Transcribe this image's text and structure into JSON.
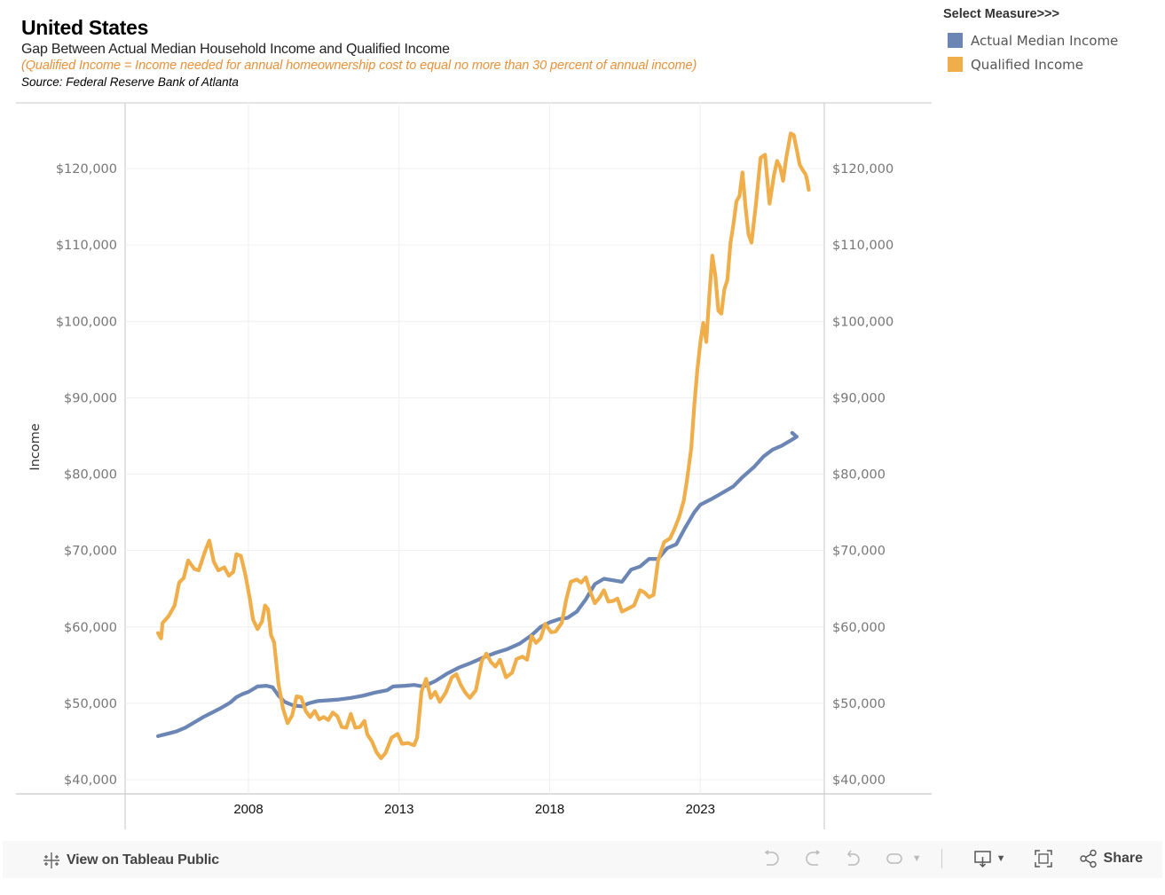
{
  "header": {
    "title": "United States",
    "subtitle": "Gap Between Actual Median Household Income and Qualified Income",
    "note": "(Qualified Income = Income needed for annual homeownership cost to equal no more than 30 percent of annual income)",
    "source": "Source: Federal Reserve Bank of Atlanta"
  },
  "legend": {
    "title": "Select Measure>>>",
    "items": [
      {
        "label": "Actual Median Income",
        "color": "#6b86b5"
      },
      {
        "label": "Qualified Income",
        "color": "#f0ae4a"
      }
    ]
  },
  "toolbar": {
    "view_link": "View on Tableau Public",
    "share_label": "Share",
    "icons": [
      "undo-icon",
      "redo-icon",
      "revert-icon",
      "refresh-icon",
      "download-icon",
      "fullscreen-icon",
      "share-icon"
    ]
  },
  "chart_data": {
    "type": "line",
    "title": "Gap Between Actual Median Household Income and Qualified Income",
    "xlabel": "",
    "ylabel": "Income",
    "xlim": [
      2005.0,
      2026.1
    ],
    "ylim": [
      40000,
      120000
    ],
    "xticks": [
      2008,
      2013,
      2018,
      2023
    ],
    "yticks": [
      40000,
      50000,
      60000,
      70000,
      80000,
      90000,
      100000,
      110000,
      120000
    ],
    "ytick_labels": [
      "$40,000",
      "$50,000",
      "$60,000",
      "$70,000",
      "$80,000",
      "$90,000",
      "$100,000",
      "$110,000",
      "$120,000"
    ],
    "grid": true,
    "dual_axis": true,
    "legend_position": "top-right",
    "series": [
      {
        "name": "Actual Median Income",
        "color": "#6b86b5",
        "points": [
          [
            2005.0,
            45700
          ],
          [
            2005.3,
            46000
          ],
          [
            2005.6,
            46300
          ],
          [
            2005.9,
            46800
          ],
          [
            2006.2,
            47500
          ],
          [
            2006.5,
            48200
          ],
          [
            2006.8,
            48800
          ],
          [
            2007.1,
            49400
          ],
          [
            2007.4,
            50100
          ],
          [
            2007.6,
            50800
          ],
          [
            2007.8,
            51200
          ],
          [
            2008.0,
            51500
          ],
          [
            2008.3,
            52200
          ],
          [
            2008.6,
            52300
          ],
          [
            2008.8,
            52100
          ],
          [
            2009.0,
            51000
          ],
          [
            2009.2,
            50200
          ],
          [
            2009.5,
            49700
          ],
          [
            2009.8,
            49600
          ],
          [
            2010.0,
            50000
          ],
          [
            2010.3,
            50300
          ],
          [
            2010.7,
            50400
          ],
          [
            2011.0,
            50500
          ],
          [
            2011.4,
            50700
          ],
          [
            2011.8,
            51000
          ],
          [
            2012.2,
            51400
          ],
          [
            2012.6,
            51700
          ],
          [
            2012.8,
            52200
          ],
          [
            2013.2,
            52300
          ],
          [
            2013.5,
            52400
          ],
          [
            2013.8,
            52200
          ],
          [
            2014.2,
            52900
          ],
          [
            2014.6,
            53900
          ],
          [
            2015.0,
            54700
          ],
          [
            2015.4,
            55300
          ],
          [
            2015.8,
            56000
          ],
          [
            2016.2,
            56600
          ],
          [
            2016.6,
            57100
          ],
          [
            2017.0,
            57800
          ],
          [
            2017.4,
            58900
          ],
          [
            2017.7,
            60000
          ],
          [
            2018.0,
            60600
          ],
          [
            2018.3,
            61000
          ],
          [
            2018.6,
            61200
          ],
          [
            2018.9,
            62000
          ],
          [
            2019.2,
            63600
          ],
          [
            2019.5,
            65600
          ],
          [
            2019.8,
            66300
          ],
          [
            2020.1,
            66100
          ],
          [
            2020.4,
            65900
          ],
          [
            2020.7,
            67500
          ],
          [
            2021.0,
            67900
          ],
          [
            2021.3,
            68900
          ],
          [
            2021.6,
            68900
          ],
          [
            2021.9,
            70300
          ],
          [
            2022.2,
            70800
          ],
          [
            2022.5,
            73000
          ],
          [
            2022.8,
            75000
          ],
          [
            2023.0,
            76000
          ],
          [
            2023.4,
            76800
          ],
          [
            2023.8,
            77700
          ],
          [
            2024.1,
            78400
          ],
          [
            2024.4,
            79600
          ],
          [
            2024.8,
            81000
          ],
          [
            2025.1,
            82300
          ],
          [
            2025.4,
            83200
          ],
          [
            2025.7,
            83700
          ],
          [
            2026.0,
            84400
          ],
          [
            2026.2,
            84900
          ],
          [
            2026.05,
            85400
          ]
        ]
      },
      {
        "name": "Qualified Income",
        "color": "#f0ae4a",
        "points": [
          [
            2005.0,
            59200
          ],
          [
            2005.1,
            58500
          ],
          [
            2005.15,
            60500
          ],
          [
            2005.35,
            61400
          ],
          [
            2005.55,
            62800
          ],
          [
            2005.7,
            65800
          ],
          [
            2005.85,
            66400
          ],
          [
            2006.0,
            68700
          ],
          [
            2006.2,
            67600
          ],
          [
            2006.35,
            67400
          ],
          [
            2006.55,
            69800
          ],
          [
            2006.7,
            71300
          ],
          [
            2006.85,
            68500
          ],
          [
            2007.0,
            67400
          ],
          [
            2007.2,
            67800
          ],
          [
            2007.35,
            66700
          ],
          [
            2007.5,
            67200
          ],
          [
            2007.6,
            69500
          ],
          [
            2007.75,
            69300
          ],
          [
            2007.9,
            66800
          ],
          [
            2008.05,
            63600
          ],
          [
            2008.15,
            61000
          ],
          [
            2008.3,
            59700
          ],
          [
            2008.45,
            60700
          ],
          [
            2008.55,
            62800
          ],
          [
            2008.65,
            62300
          ],
          [
            2008.75,
            58900
          ],
          [
            2008.85,
            58000
          ],
          [
            2009.0,
            52500
          ],
          [
            2009.15,
            49300
          ],
          [
            2009.3,
            47400
          ],
          [
            2009.45,
            48400
          ],
          [
            2009.6,
            50900
          ],
          [
            2009.75,
            50800
          ],
          [
            2009.9,
            49000
          ],
          [
            2010.05,
            48200
          ],
          [
            2010.2,
            49000
          ],
          [
            2010.35,
            47900
          ],
          [
            2010.5,
            48200
          ],
          [
            2010.65,
            47800
          ],
          [
            2010.8,
            48800
          ],
          [
            2010.95,
            48300
          ],
          [
            2011.1,
            46900
          ],
          [
            2011.25,
            46800
          ],
          [
            2011.4,
            48600
          ],
          [
            2011.55,
            46800
          ],
          [
            2011.7,
            46900
          ],
          [
            2011.85,
            47700
          ],
          [
            2011.95,
            45900
          ],
          [
            2012.1,
            45000
          ],
          [
            2012.25,
            43600
          ],
          [
            2012.4,
            42800
          ],
          [
            2012.55,
            43500
          ],
          [
            2012.75,
            45500
          ],
          [
            2012.95,
            46000
          ],
          [
            2013.1,
            44700
          ],
          [
            2013.3,
            44800
          ],
          [
            2013.5,
            44500
          ],
          [
            2013.6,
            45500
          ],
          [
            2013.75,
            51600
          ],
          [
            2013.9,
            53200
          ],
          [
            2014.05,
            50700
          ],
          [
            2014.2,
            51500
          ],
          [
            2014.35,
            50200
          ],
          [
            2014.55,
            51400
          ],
          [
            2014.75,
            53400
          ],
          [
            2014.9,
            53800
          ],
          [
            2015.05,
            52400
          ],
          [
            2015.2,
            51400
          ],
          [
            2015.35,
            50700
          ],
          [
            2015.55,
            51700
          ],
          [
            2015.75,
            55600
          ],
          [
            2015.9,
            56500
          ],
          [
            2016.05,
            55400
          ],
          [
            2016.2,
            54800
          ],
          [
            2016.35,
            55700
          ],
          [
            2016.55,
            53400
          ],
          [
            2016.75,
            54000
          ],
          [
            2016.9,
            55800
          ],
          [
            2017.1,
            56100
          ],
          [
            2017.25,
            55700
          ],
          [
            2017.4,
            58800
          ],
          [
            2017.55,
            57900
          ],
          [
            2017.7,
            58500
          ],
          [
            2017.85,
            60400
          ],
          [
            2018.05,
            59300
          ],
          [
            2018.2,
            59400
          ],
          [
            2018.4,
            60500
          ],
          [
            2018.55,
            63600
          ],
          [
            2018.7,
            65900
          ],
          [
            2018.9,
            66200
          ],
          [
            2019.05,
            65800
          ],
          [
            2019.2,
            66500
          ],
          [
            2019.35,
            64600
          ],
          [
            2019.5,
            63100
          ],
          [
            2019.65,
            63800
          ],
          [
            2019.8,
            64800
          ],
          [
            2019.95,
            63300
          ],
          [
            2020.1,
            63400
          ],
          [
            2020.25,
            63700
          ],
          [
            2020.4,
            62000
          ],
          [
            2020.6,
            62400
          ],
          [
            2020.8,
            62800
          ],
          [
            2021.0,
            64800
          ],
          [
            2021.15,
            64500
          ],
          [
            2021.3,
            63900
          ],
          [
            2021.45,
            64200
          ],
          [
            2021.6,
            68700
          ],
          [
            2021.8,
            71100
          ],
          [
            2022.0,
            71600
          ],
          [
            2022.15,
            72900
          ],
          [
            2022.3,
            74400
          ],
          [
            2022.45,
            76500
          ],
          [
            2022.55,
            79000
          ],
          [
            2022.7,
            83400
          ],
          [
            2022.8,
            89000
          ],
          [
            2022.9,
            93600
          ],
          [
            2023.0,
            97200
          ],
          [
            2023.1,
            99800
          ],
          [
            2023.2,
            97300
          ],
          [
            2023.3,
            103300
          ],
          [
            2023.4,
            108600
          ],
          [
            2023.5,
            106000
          ],
          [
            2023.6,
            101400
          ],
          [
            2023.7,
            101000
          ],
          [
            2023.8,
            104200
          ],
          [
            2023.9,
            105400
          ],
          [
            2024.0,
            110200
          ],
          [
            2024.1,
            112700
          ],
          [
            2024.2,
            115700
          ],
          [
            2024.3,
            116400
          ],
          [
            2024.4,
            119500
          ],
          [
            2024.5,
            115000
          ],
          [
            2024.6,
            111400
          ],
          [
            2024.7,
            110300
          ],
          [
            2024.85,
            115500
          ],
          [
            2025.0,
            121400
          ],
          [
            2025.15,
            121800
          ],
          [
            2025.3,
            115400
          ],
          [
            2025.45,
            119200
          ],
          [
            2025.55,
            121000
          ],
          [
            2025.65,
            120200
          ],
          [
            2025.75,
            118400
          ],
          [
            2025.85,
            121300
          ],
          [
            2026.0,
            124600
          ],
          [
            2026.1,
            124400
          ],
          [
            2026.2,
            122500
          ],
          [
            2026.3,
            120500
          ],
          [
            2026.4,
            119800
          ],
          [
            2026.5,
            119200
          ],
          [
            2026.55,
            118400
          ],
          [
            2026.6,
            117200
          ]
        ]
      }
    ]
  }
}
